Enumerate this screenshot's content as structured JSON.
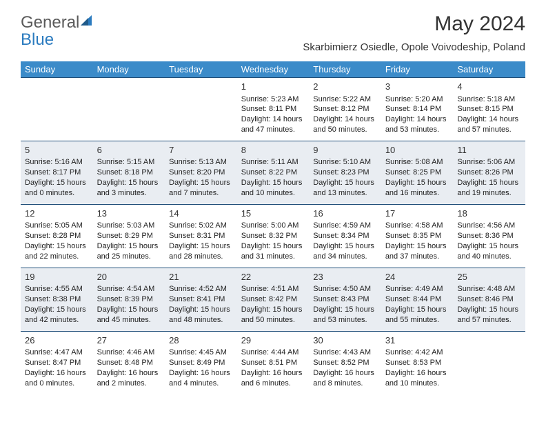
{
  "logo": {
    "text1": "General",
    "text2": "Blue"
  },
  "title": "May 2024",
  "location": "Skarbimierz Osiedle, Opole Voivodeship, Poland",
  "colors": {
    "header_bg": "#3b8bc9",
    "row_border": "#1f4e79",
    "shade_bg": "#e9edf2",
    "logo_accent": "#2b7bbf",
    "text": "#333333"
  },
  "weekdays": [
    "Sunday",
    "Monday",
    "Tuesday",
    "Wednesday",
    "Thursday",
    "Friday",
    "Saturday"
  ],
  "weeks": [
    {
      "shaded": false,
      "days": [
        null,
        null,
        null,
        {
          "n": "1",
          "sunrise": "5:23 AM",
          "sunset": "8:11 PM",
          "daylight": "14 hours and 47 minutes."
        },
        {
          "n": "2",
          "sunrise": "5:22 AM",
          "sunset": "8:12 PM",
          "daylight": "14 hours and 50 minutes."
        },
        {
          "n": "3",
          "sunrise": "5:20 AM",
          "sunset": "8:14 PM",
          "daylight": "14 hours and 53 minutes."
        },
        {
          "n": "4",
          "sunrise": "5:18 AM",
          "sunset": "8:15 PM",
          "daylight": "14 hours and 57 minutes."
        }
      ]
    },
    {
      "shaded": true,
      "days": [
        {
          "n": "5",
          "sunrise": "5:16 AM",
          "sunset": "8:17 PM",
          "daylight": "15 hours and 0 minutes."
        },
        {
          "n": "6",
          "sunrise": "5:15 AM",
          "sunset": "8:18 PM",
          "daylight": "15 hours and 3 minutes."
        },
        {
          "n": "7",
          "sunrise": "5:13 AM",
          "sunset": "8:20 PM",
          "daylight": "15 hours and 7 minutes."
        },
        {
          "n": "8",
          "sunrise": "5:11 AM",
          "sunset": "8:22 PM",
          "daylight": "15 hours and 10 minutes."
        },
        {
          "n": "9",
          "sunrise": "5:10 AM",
          "sunset": "8:23 PM",
          "daylight": "15 hours and 13 minutes."
        },
        {
          "n": "10",
          "sunrise": "5:08 AM",
          "sunset": "8:25 PM",
          "daylight": "15 hours and 16 minutes."
        },
        {
          "n": "11",
          "sunrise": "5:06 AM",
          "sunset": "8:26 PM",
          "daylight": "15 hours and 19 minutes."
        }
      ]
    },
    {
      "shaded": false,
      "days": [
        {
          "n": "12",
          "sunrise": "5:05 AM",
          "sunset": "8:28 PM",
          "daylight": "15 hours and 22 minutes."
        },
        {
          "n": "13",
          "sunrise": "5:03 AM",
          "sunset": "8:29 PM",
          "daylight": "15 hours and 25 minutes."
        },
        {
          "n": "14",
          "sunrise": "5:02 AM",
          "sunset": "8:31 PM",
          "daylight": "15 hours and 28 minutes."
        },
        {
          "n": "15",
          "sunrise": "5:00 AM",
          "sunset": "8:32 PM",
          "daylight": "15 hours and 31 minutes."
        },
        {
          "n": "16",
          "sunrise": "4:59 AM",
          "sunset": "8:34 PM",
          "daylight": "15 hours and 34 minutes."
        },
        {
          "n": "17",
          "sunrise": "4:58 AM",
          "sunset": "8:35 PM",
          "daylight": "15 hours and 37 minutes."
        },
        {
          "n": "18",
          "sunrise": "4:56 AM",
          "sunset": "8:36 PM",
          "daylight": "15 hours and 40 minutes."
        }
      ]
    },
    {
      "shaded": true,
      "days": [
        {
          "n": "19",
          "sunrise": "4:55 AM",
          "sunset": "8:38 PM",
          "daylight": "15 hours and 42 minutes."
        },
        {
          "n": "20",
          "sunrise": "4:54 AM",
          "sunset": "8:39 PM",
          "daylight": "15 hours and 45 minutes."
        },
        {
          "n": "21",
          "sunrise": "4:52 AM",
          "sunset": "8:41 PM",
          "daylight": "15 hours and 48 minutes."
        },
        {
          "n": "22",
          "sunrise": "4:51 AM",
          "sunset": "8:42 PM",
          "daylight": "15 hours and 50 minutes."
        },
        {
          "n": "23",
          "sunrise": "4:50 AM",
          "sunset": "8:43 PM",
          "daylight": "15 hours and 53 minutes."
        },
        {
          "n": "24",
          "sunrise": "4:49 AM",
          "sunset": "8:44 PM",
          "daylight": "15 hours and 55 minutes."
        },
        {
          "n": "25",
          "sunrise": "4:48 AM",
          "sunset": "8:46 PM",
          "daylight": "15 hours and 57 minutes."
        }
      ]
    },
    {
      "shaded": false,
      "days": [
        {
          "n": "26",
          "sunrise": "4:47 AM",
          "sunset": "8:47 PM",
          "daylight": "16 hours and 0 minutes."
        },
        {
          "n": "27",
          "sunrise": "4:46 AM",
          "sunset": "8:48 PM",
          "daylight": "16 hours and 2 minutes."
        },
        {
          "n": "28",
          "sunrise": "4:45 AM",
          "sunset": "8:49 PM",
          "daylight": "16 hours and 4 minutes."
        },
        {
          "n": "29",
          "sunrise": "4:44 AM",
          "sunset": "8:51 PM",
          "daylight": "16 hours and 6 minutes."
        },
        {
          "n": "30",
          "sunrise": "4:43 AM",
          "sunset": "8:52 PM",
          "daylight": "16 hours and 8 minutes."
        },
        {
          "n": "31",
          "sunrise": "4:42 AM",
          "sunset": "8:53 PM",
          "daylight": "16 hours and 10 minutes."
        },
        null
      ]
    }
  ],
  "labels": {
    "sunrise": "Sunrise:",
    "sunset": "Sunset:",
    "daylight": "Daylight:"
  }
}
